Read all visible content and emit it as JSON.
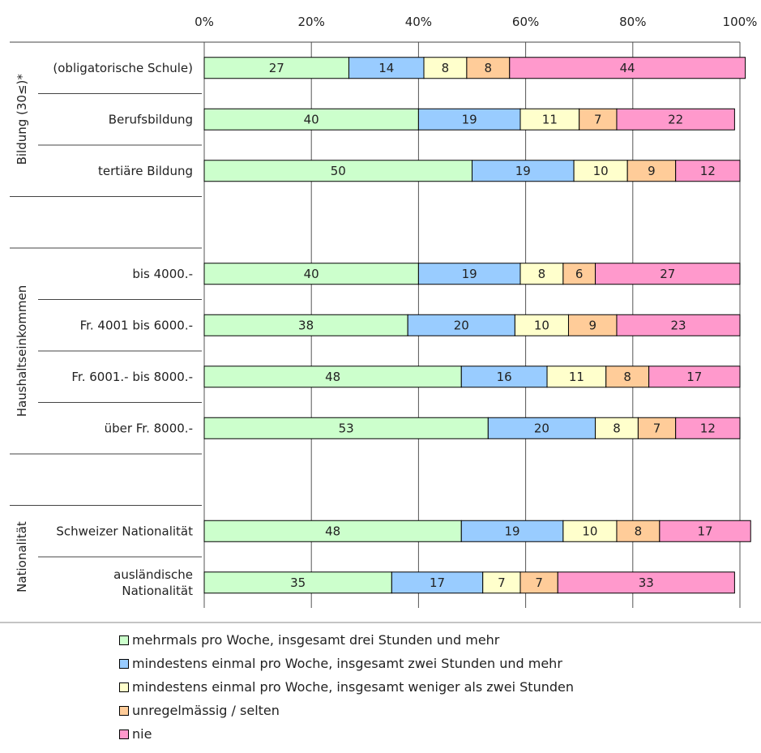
{
  "chart_data": {
    "type": "bar",
    "orientation": "horizontal",
    "stacked": true,
    "percent": true,
    "xlim": [
      0,
      100
    ],
    "x_ticks": [
      "0%",
      "20%",
      "40%",
      "60%",
      "80%",
      "100%"
    ],
    "grid": true,
    "legend_position": "bottom",
    "groups": [
      {
        "label": "Bildung (30≤)*",
        "rows": [
          {
            "label": [
              "(obligatorische Schule)"
            ],
            "values": [
              27,
              14,
              8,
              8,
              44
            ]
          },
          {
            "label": [
              "Berufsbildung"
            ],
            "values": [
              40,
              19,
              11,
              7,
              22
            ]
          },
          {
            "label": [
              "tertiäre Bildung"
            ],
            "values": [
              50,
              19,
              10,
              9,
              12
            ]
          }
        ]
      },
      {
        "label": "Haushaltseinkommen",
        "rows": [
          {
            "label": [
              "bis 4000.-"
            ],
            "values": [
              40,
              19,
              8,
              6,
              27
            ]
          },
          {
            "label": [
              "Fr. 4001 bis 6000.-"
            ],
            "values": [
              38,
              20,
              10,
              9,
              23
            ]
          },
          {
            "label": [
              "Fr. 6001.- bis  8000.-"
            ],
            "values": [
              48,
              16,
              11,
              8,
              17
            ]
          },
          {
            "label": [
              "über Fr. 8000.-"
            ],
            "values": [
              53,
              20,
              8,
              7,
              12
            ]
          }
        ]
      },
      {
        "label": "Nationalität",
        "rows": [
          {
            "label": [
              "Schweizer Nationalität"
            ],
            "values": [
              48,
              19,
              10,
              8,
              17
            ]
          },
          {
            "label": [
              "ausländische",
              "Nationalität"
            ],
            "values": [
              35,
              17,
              7,
              7,
              33
            ]
          }
        ]
      }
    ],
    "series": [
      {
        "name": "mehrmals pro Woche, insgesamt drei Stunden und mehr",
        "color": "#ccffcc"
      },
      {
        "name": "mindestens einmal pro Woche, insgesamt zwei Stunden und mehr",
        "color": "#99ccff"
      },
      {
        "name": "mindestens einmal pro Woche, insgesamt weniger als zwei Stunden",
        "color": "#ffffcc"
      },
      {
        "name": "unregelmässig / selten",
        "color": "#ffcc99"
      },
      {
        "name": "nie",
        "color": "#ff99cc"
      }
    ]
  }
}
